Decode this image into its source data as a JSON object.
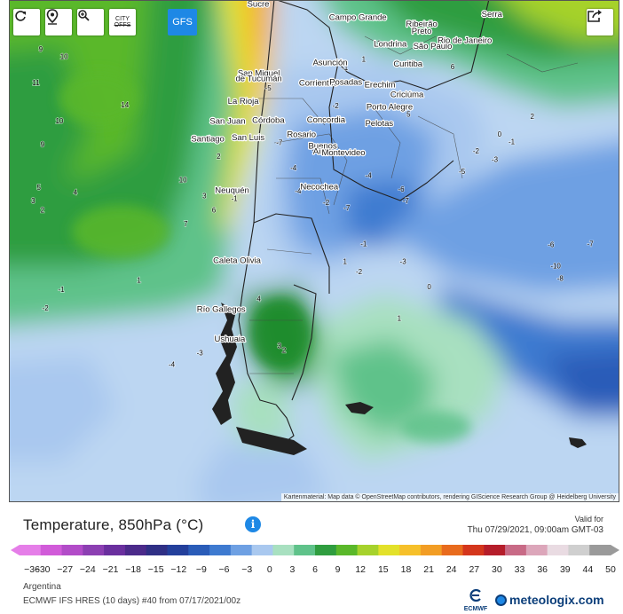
{
  "toolbar": {
    "refresh_icon": "refresh-icon",
    "location_icon": "location-pin-icon",
    "zoom_icon": "zoom-in-icon",
    "city_label_top": "CITY",
    "city_label_bottom": "OFFS",
    "model_button": "GFS",
    "share_icon": "share-icon"
  },
  "map": {
    "attribution": "Kartenmaterial: Map data © OpenStreetMap contributors, rendering GIScience Research Group @ Heidelberg University",
    "cities": [
      {
        "name": "Sucre",
        "lon": -65.26,
        "lat": -19.04
      },
      {
        "name": "Campo Grande",
        "lon": -54.62,
        "lat": -20.45
      },
      {
        "name": "Ribeirão",
        "lon": -47.81,
        "lat": -21.18
      },
      {
        "name": "Preto",
        "lon": -47.81,
        "lat": -21.9
      },
      {
        "name": "Serra",
        "lon": -40.3,
        "lat": -20.13
      },
      {
        "name": "Londrina",
        "lon": -51.16,
        "lat": -23.31
      },
      {
        "name": "São Paulo",
        "lon": -46.63,
        "lat": -23.55
      },
      {
        "name": "Rio de Janeiro",
        "lon": -43.2,
        "lat": -22.91
      },
      {
        "name": "Asunción",
        "lon": -57.58,
        "lat": -25.28
      },
      {
        "name": "Curitiba",
        "lon": -49.27,
        "lat": -25.43
      },
      {
        "name": "San Miguel",
        "lon": -65.2,
        "lat": -26.4
      },
      {
        "name": "de Tucumán",
        "lon": -65.2,
        "lat": -27.0
      },
      {
        "name": "Corrientes",
        "lon": -58.83,
        "lat": -27.47
      },
      {
        "name": "Posadas",
        "lon": -55.9,
        "lat": -27.37
      },
      {
        "name": "Erechim",
        "lon": -52.27,
        "lat": -27.63
      },
      {
        "name": "Criciúma",
        "lon": -49.37,
        "lat": -28.68
      },
      {
        "name": "La Rioja",
        "lon": -66.86,
        "lat": -29.41
      },
      {
        "name": "Porto Alegre",
        "lon": -51.23,
        "lat": -30.03
      },
      {
        "name": "San Juan",
        "lon": -68.53,
        "lat": -31.54
      },
      {
        "name": "Córdoba",
        "lon": -64.18,
        "lat": -31.42
      },
      {
        "name": "Concordia",
        "lon": -58.02,
        "lat": -31.39
      },
      {
        "name": "Pelotas",
        "lon": -52.34,
        "lat": -31.77
      },
      {
        "name": "Rosario",
        "lon": -60.64,
        "lat": -32.95
      },
      {
        "name": "Santiago",
        "lon": -70.65,
        "lat": -33.45
      },
      {
        "name": "San Luis",
        "lon": -66.34,
        "lat": -33.3
      },
      {
        "name": "Buenos",
        "lon": -58.38,
        "lat": -34.2
      },
      {
        "name": "Aires",
        "lon": -58.38,
        "lat": -34.75
      },
      {
        "name": "Montevideo",
        "lon": -56.16,
        "lat": -34.9
      },
      {
        "name": "Necochea",
        "lon": -58.74,
        "lat": -38.55
      },
      {
        "name": "Neuquén",
        "lon": -68.06,
        "lat": -38.95
      },
      {
        "name": "Caleta Olivia",
        "lon": -67.53,
        "lat": -46.44
      },
      {
        "name": "Río Gallegos",
        "lon": -69.22,
        "lat": -51.62
      },
      {
        "name": "Ushuaia",
        "lon": -68.3,
        "lat": -54.8
      }
    ],
    "isotherm_labels": [
      {
        "text": "9",
        "lon": -88.5,
        "lat": -23.8
      },
      {
        "text": "10",
        "lon": -86.0,
        "lat": -24.6
      },
      {
        "text": "11",
        "lon": -89.0,
        "lat": -27.4
      },
      {
        "text": "14",
        "lon": -79.5,
        "lat": -29.8
      },
      {
        "text": "10",
        "lon": -86.5,
        "lat": -31.5
      },
      {
        "text": "9",
        "lon": -88.3,
        "lat": -34.0
      },
      {
        "text": "5",
        "lon": -88.7,
        "lat": -38.6
      },
      {
        "text": "4",
        "lon": -84.8,
        "lat": -39.1
      },
      {
        "text": "3",
        "lon": -89.3,
        "lat": -40.0
      },
      {
        "text": "2",
        "lon": -88.3,
        "lat": -41.0
      },
      {
        "text": "10",
        "lon": -73.3,
        "lat": -37.8
      },
      {
        "text": "7",
        "lon": -73.0,
        "lat": -42.5
      },
      {
        "text": "-1",
        "lon": -86.3,
        "lat": -49.5
      },
      {
        "text": "-2",
        "lon": -88.0,
        "lat": -51.5
      },
      {
        "text": "1",
        "lon": -78.0,
        "lat": -48.5
      },
      {
        "text": "-4",
        "lon": -74.5,
        "lat": -57.5
      },
      {
        "text": "-3",
        "lon": -71.5,
        "lat": -56.3
      },
      {
        "text": "2",
        "lon": -69.5,
        "lat": -35.3
      },
      {
        "text": "3",
        "lon": -71.0,
        "lat": -39.5
      },
      {
        "text": "-1",
        "lon": -67.8,
        "lat": -39.8
      },
      {
        "text": "6",
        "lon": -70.0,
        "lat": -41.0
      },
      {
        "text": "4",
        "lon": -65.2,
        "lat": -50.5
      },
      {
        "text": "3",
        "lon": -63.0,
        "lat": -55.5
      },
      {
        "text": "2",
        "lon": -62.5,
        "lat": -56.0
      },
      {
        "text": "-7",
        "lon": -63.0,
        "lat": -33.8
      },
      {
        "text": "-4",
        "lon": -61.5,
        "lat": -36.5
      },
      {
        "text": "-5",
        "lon": -64.2,
        "lat": -28.0
      },
      {
        "text": "-4",
        "lon": -59.2,
        "lat": -34.6
      },
      {
        "text": "-2",
        "lon": -57.0,
        "lat": -29.9
      },
      {
        "text": "-1",
        "lon": -52.5,
        "lat": -23.2
      },
      {
        "text": "1",
        "lon": -54.0,
        "lat": -24.9
      },
      {
        "text": "-1",
        "lon": -56.0,
        "lat": -25.8
      },
      {
        "text": "5",
        "lon": -49.2,
        "lat": -30.8
      },
      {
        "text": "6",
        "lon": -44.5,
        "lat": -25.7
      },
      {
        "text": "2",
        "lon": -36.0,
        "lat": -31.0
      },
      {
        "text": "0",
        "lon": -39.5,
        "lat": -32.9
      },
      {
        "text": "-1",
        "lon": -38.2,
        "lat": -33.7
      },
      {
        "text": "-2",
        "lon": -42.0,
        "lat": -34.7
      },
      {
        "text": "-3",
        "lon": -40.0,
        "lat": -35.6
      },
      {
        "text": "-5",
        "lon": -43.5,
        "lat": -36.9
      },
      {
        "text": "-4",
        "lon": -53.5,
        "lat": -37.3
      },
      {
        "text": "-6",
        "lon": -50.0,
        "lat": -38.8
      },
      {
        "text": "-7",
        "lon": -49.5,
        "lat": -40.0
      },
      {
        "text": "-7",
        "lon": -55.8,
        "lat": -40.8
      },
      {
        "text": "-2",
        "lon": -58.0,
        "lat": -40.2
      },
      {
        "text": "-4",
        "lon": -61.0,
        "lat": -39.0
      },
      {
        "text": "-6",
        "lon": -34.0,
        "lat": -44.7
      },
      {
        "text": "-7",
        "lon": -29.8,
        "lat": -44.6
      },
      {
        "text": "-10",
        "lon": -33.5,
        "lat": -47.0
      },
      {
        "text": "-8",
        "lon": -33.0,
        "lat": -48.3
      },
      {
        "text": "-3",
        "lon": -49.8,
        "lat": -46.5
      },
      {
        "text": "0",
        "lon": -47.0,
        "lat": -49.2
      },
      {
        "text": "1",
        "lon": -50.2,
        "lat": -52.6
      },
      {
        "text": "1",
        "lon": -56.0,
        "lat": -46.5
      },
      {
        "text": "-2",
        "lon": -54.5,
        "lat": -47.6
      },
      {
        "text": "-1",
        "lon": -54.0,
        "lat": -44.6
      }
    ]
  },
  "legend": {
    "title": "Temperature, 850hPa (°C)",
    "info_icon": "i",
    "valid_for_label": "Valid for",
    "valid_time": "Thu 07/29/2021, 09:00am GMT-03",
    "ticks": [
      "-36",
      "-30",
      "-27",
      "-24",
      "-21",
      "-18",
      "-15",
      "-12",
      "-9",
      "-6",
      "-3",
      "0",
      "3",
      "6",
      "9",
      "12",
      "15",
      "18",
      "21",
      "24",
      "27",
      "30",
      "33",
      "36",
      "39",
      "44",
      "50"
    ],
    "colors": [
      "#e57ee8",
      "#d15bd9",
      "#b24cc8",
      "#8c3fb2",
      "#6a2f9e",
      "#4b2a8a",
      "#2f2f85",
      "#233f9b",
      "#2a5cb8",
      "#3e7ad0",
      "#6ea0e3",
      "#a9c8ef",
      "#a8e0c0",
      "#5fc28a",
      "#2f9d3f",
      "#5ab82a",
      "#a6d22c",
      "#e3e12a",
      "#f6c02a",
      "#f29d24",
      "#e86b1d",
      "#d4361c",
      "#b51d2a",
      "#c86a86",
      "#dca6ba",
      "#e9dbe2",
      "#cfcfcf",
      "#9a9a9a"
    ]
  },
  "footer": {
    "region": "Argentina",
    "model": "ECMWF IFS HRES (10 days) #40 from 07/17/2021/00z",
    "ecmwf_label": "ECMWF",
    "brand": "meteologix.com"
  }
}
